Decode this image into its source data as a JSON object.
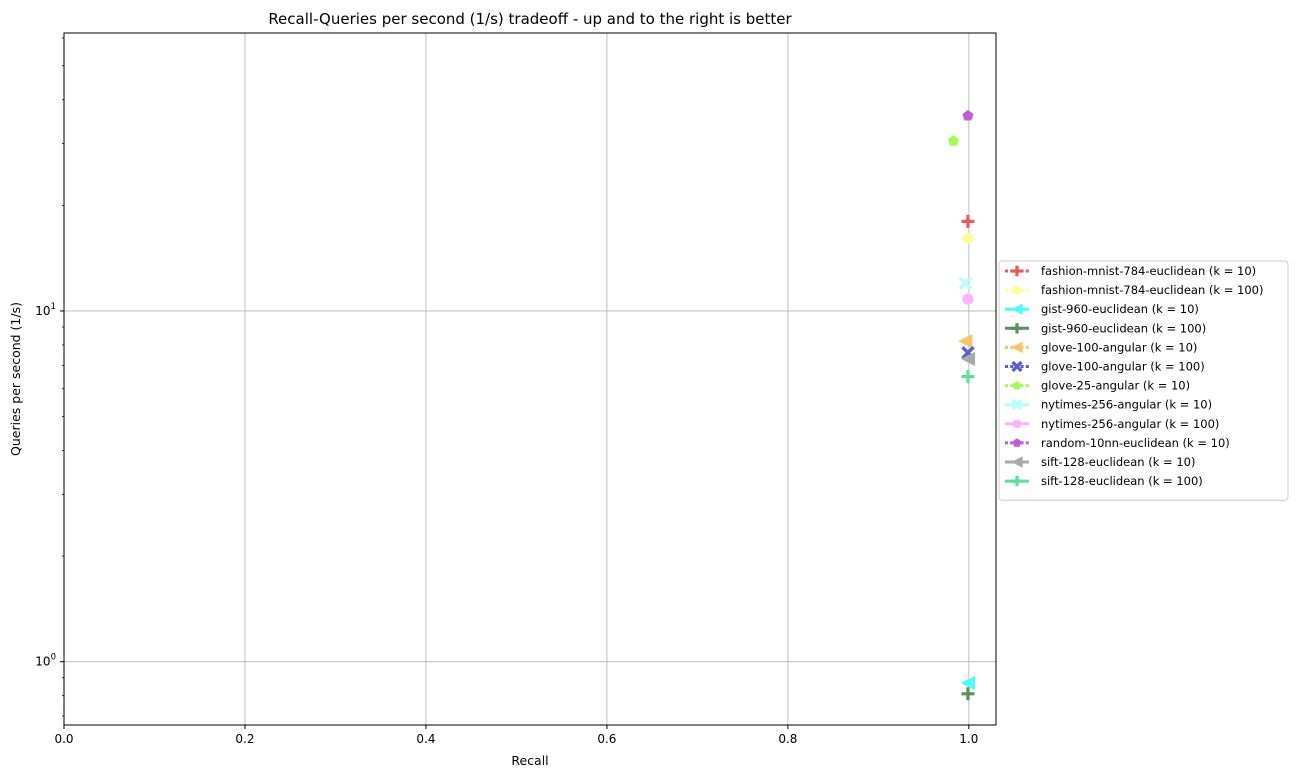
{
  "chart_data": {
    "type": "scatter",
    "title": "Recall-Queries per second (1/s) tradeoff - up and to the right is better",
    "xlabel": "Recall",
    "ylabel": "Queries per second (1/s)",
    "xscale": "linear",
    "yscale": "log",
    "xlim": [
      0.0,
      1.03
    ],
    "ylim": [
      0.66,
      62
    ],
    "xticks": [
      {
        "value": 0.0,
        "label": "0.0"
      },
      {
        "value": 0.2,
        "label": "0.2"
      },
      {
        "value": 0.4,
        "label": "0.4"
      },
      {
        "value": 0.6,
        "label": "0.6"
      },
      {
        "value": 0.8,
        "label": "0.8"
      },
      {
        "value": 1.0,
        "label": "1.0"
      }
    ],
    "yticks": [
      {
        "value": 1,
        "base": "10",
        "exp": "0"
      },
      {
        "value": 10,
        "base": "10",
        "exp": "1"
      }
    ],
    "grid": true,
    "legend_position": "outside-right",
    "series": [
      {
        "name": "fashion-mnist-784-euclidean (k = 10)",
        "color": "#e8595d",
        "marker": "plus",
        "dash": "dotted",
        "x": [
          0.999
        ],
        "y": [
          18.0
        ]
      },
      {
        "name": "fashion-mnist-784-euclidean (k = 100)",
        "color": "#fdfd9b",
        "marker": "circle",
        "dash": "dotted",
        "x": [
          0.999
        ],
        "y": [
          16.1
        ]
      },
      {
        "name": "gist-960-euclidean (k = 10)",
        "color": "#4dfdfd",
        "marker": "triangle-left",
        "dash": "solid",
        "x": [
          0.999
        ],
        "y": [
          0.87
        ]
      },
      {
        "name": "gist-960-euclidean (k = 100)",
        "color": "#5c8f5c",
        "marker": "plus",
        "dash": "solid",
        "x": [
          0.999
        ],
        "y": [
          0.81
        ]
      },
      {
        "name": "glove-100-angular (k = 10)",
        "color": "#fdc36a",
        "marker": "triangle-left",
        "dash": "dotted",
        "x": [
          0.996
        ],
        "y": [
          8.2
        ]
      },
      {
        "name": "glove-100-angular (k = 100)",
        "color": "#5a5fce",
        "marker": "x",
        "dash": "dotted",
        "x": [
          0.999
        ],
        "y": [
          7.6
        ]
      },
      {
        "name": "glove-25-angular (k = 10)",
        "color": "#a4fd52",
        "marker": "pentagon",
        "dash": "dotted",
        "x": [
          0.983
        ],
        "y": [
          30.5
        ]
      },
      {
        "name": "nytimes-256-angular (k = 10)",
        "color": "#b8fdfd",
        "marker": "x",
        "dash": "solid",
        "x": [
          0.996
        ],
        "y": [
          12.0
        ]
      },
      {
        "name": "nytimes-256-angular (k = 100)",
        "color": "#fdb2fd",
        "marker": "circle",
        "dash": "solid",
        "x": [
          0.999
        ],
        "y": [
          10.8
        ]
      },
      {
        "name": "random-10nn-euclidean (k = 10)",
        "color": "#c35bd8",
        "marker": "pentagon",
        "dash": "dotted",
        "x": [
          0.999
        ],
        "y": [
          36.0
        ]
      },
      {
        "name": "sift-128-euclidean (k = 10)",
        "color": "#a9a9a9",
        "marker": "triangle-left",
        "dash": "solid",
        "x": [
          0.999
        ],
        "y": [
          7.3
        ]
      },
      {
        "name": "sift-128-euclidean (k = 100)",
        "color": "#57e39a",
        "marker": "plus",
        "dash": "solid",
        "x": [
          0.999
        ],
        "y": [
          6.5
        ]
      }
    ]
  }
}
